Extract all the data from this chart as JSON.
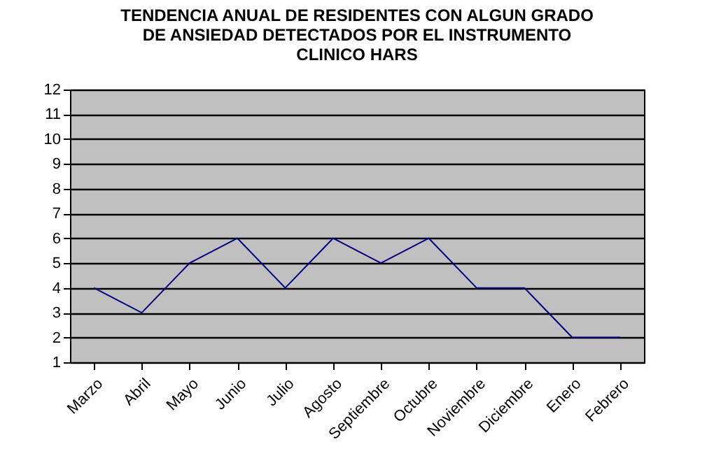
{
  "chart_data": {
    "type": "line",
    "title": [
      "TENDENCIA ANUAL DE RESIDENTES CON ALGUN GRADO",
      "DE ANSIEDAD DETECTADOS POR EL INSTRUMENTO",
      "CLINICO HARS"
    ],
    "categories": [
      "Marzo",
      "Abril",
      "Mayo",
      "Junio",
      "Julio",
      "Agosto",
      "Septiembre",
      "Octubre",
      "Noviembre",
      "Diciembre",
      "Enero",
      "Febrero"
    ],
    "series": [
      {
        "color": "#000080",
        "values": [
          4,
          3,
          5,
          6,
          4,
          6,
          5,
          6,
          4,
          4,
          2,
          2
        ]
      }
    ],
    "ylim": [
      1,
      12
    ],
    "yticks": [
      1,
      2,
      3,
      4,
      5,
      6,
      7,
      8,
      9,
      10,
      11,
      12
    ],
    "grid": "y",
    "marker": "none",
    "line_style": "solid"
  }
}
